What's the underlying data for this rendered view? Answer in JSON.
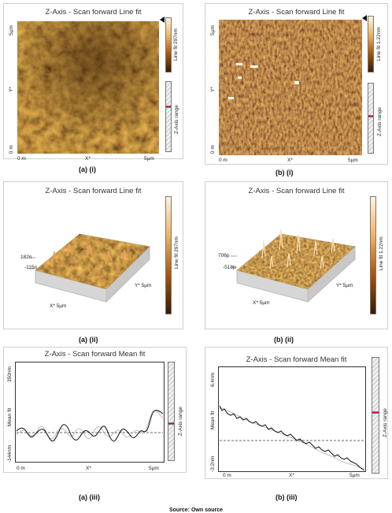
{
  "panels": {
    "a_i": {
      "title": "Z-Axis - Scan forward   Line fit",
      "y_top": "5µm",
      "y_mid": "Y*",
      "y_bottom": "0 m",
      "x_left": "0 m",
      "x_mid": "X*",
      "x_right": "5µm",
      "colorbar_label": "Line fit 297nm",
      "range_label": "Z-Axis range",
      "caption": "(a)   (i)"
    },
    "b_i": {
      "title": "Z-Axis - Scan forward   Line fit",
      "y_top": "5µm",
      "y_mid": "Y*",
      "y_bottom": "0 m",
      "x_left": "0 m",
      "x_mid": "X*",
      "x_right": "5µm",
      "colorbar_label": "Line fit 1.22nm",
      "range_label": "Z-Axis range",
      "caption": "(b)   (i)"
    },
    "a_ii": {
      "title": "Z-Axis - Scan forward   Line fit",
      "z_top": "182n",
      "z_bottom": "-115n",
      "x_label": "X* 5µm",
      "y_label": "Y* 5µm",
      "colorbar_label": "Line fit 297nm",
      "caption": "(a)   (ii)"
    },
    "b_ii": {
      "title": "Z-Axis - Scan forward   Line fit",
      "z_top": "706p",
      "z_bottom": "-518p",
      "x_label": "X* 5µm",
      "y_label": "Y* 5µm",
      "colorbar_label": "Line fit 1.22nm",
      "caption": "(b)   (ii)"
    },
    "a_iii": {
      "title": "Z-Axis - Scan forward   Mean fit",
      "y_top": "350nm",
      "y_label": "Mean fit",
      "y_bottom": "-144nm",
      "x_left": "0 m",
      "x_mid": "X*",
      "x_right": "5µm",
      "range_label": "Z-Axis range",
      "caption": "(a)   (iii)"
    },
    "b_iii": {
      "title": "Z-Axis - Scan forward   Mean fit",
      "y_top": "6.4nm",
      "y_label": "Mean fit",
      "y_bottom": "-3.2nm",
      "x_left": "0 m",
      "x_mid": "X*",
      "x_right": "5µm",
      "range_label": "Z-Axis range",
      "caption": "(b)   (iii)"
    }
  },
  "source": "Source: Own source",
  "colors": {
    "afm_dark": "#3a1a02",
    "afm_mid": "#b8620e",
    "afm_light": "#f4c27a",
    "line": "#111111",
    "range_mark": "#dd1111"
  }
}
